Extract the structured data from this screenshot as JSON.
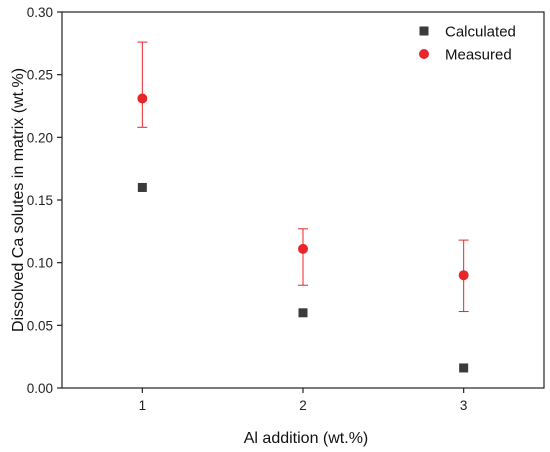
{
  "chart_data": {
    "type": "scatter",
    "title": "",
    "xlabel": "Al addition (wt.%)",
    "ylabel": "Dissolved Ca solutes in matrix (wt.%)",
    "xlim": [
      0.5,
      3.5
    ],
    "ylim": [
      0,
      0.3
    ],
    "xticks": [
      1,
      2,
      3
    ],
    "xtick_labels": [
      "1",
      "2",
      "3"
    ],
    "yticks": [
      0.0,
      0.05,
      0.1,
      0.15,
      0.2,
      0.25,
      0.3
    ],
    "ytick_labels": [
      "0.00",
      "0.05",
      "0.10",
      "0.15",
      "0.20",
      "0.25",
      "0.30"
    ],
    "grid": false,
    "legend_position": "top-right",
    "series": [
      {
        "name": "Calculated",
        "marker": "square",
        "color": "#3a3a3a",
        "x": [
          1,
          2,
          3
        ],
        "y": [
          0.16,
          0.06,
          0.016
        ]
      },
      {
        "name": "Measured",
        "marker": "circle",
        "color": "#e8262a",
        "x": [
          1,
          2,
          3
        ],
        "y": [
          0.231,
          0.111,
          0.09
        ],
        "err_low": [
          0.208,
          0.082,
          0.061
        ],
        "err_high": [
          0.276,
          0.127,
          0.118
        ]
      }
    ]
  }
}
